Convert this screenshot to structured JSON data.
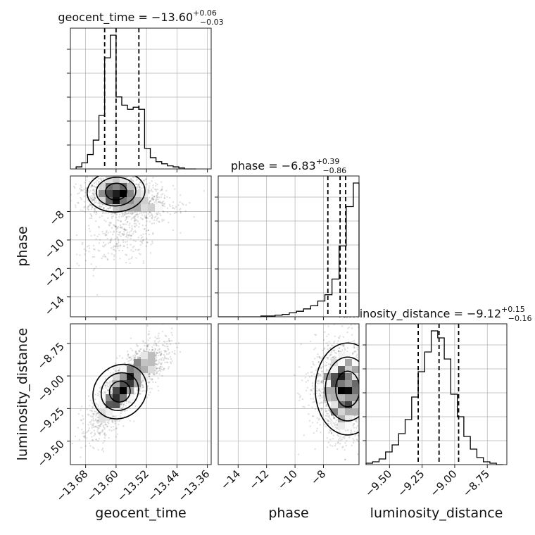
{
  "chart_data": {
    "type": "corner",
    "titles": {
      "geocent_time": {
        "prefix": "geocent_time = ",
        "value": "−13.60",
        "sup": "+0.06",
        "sub": "−0.03"
      },
      "phase": {
        "prefix": "phase = ",
        "value": "−6.83",
        "sup": "+0.39",
        "sub": "−0.86"
      },
      "luminosity_distance": {
        "prefix": "luminosity_distance = ",
        "value": "−9.12",
        "sup": "+0.15",
        "sub": "−0.16"
      }
    },
    "axis_labels": {
      "x0": "geocent_time",
      "x1": "phase",
      "x2": "luminosity_distance",
      "y1": "phase",
      "y2": "luminosity_distance"
    },
    "ranges": {
      "geocent_time": [
        -13.72,
        -13.35
      ],
      "phase": [
        -15.4,
        -5.5
      ],
      "luminosity_distance": [
        -9.68,
        -8.6
      ]
    },
    "ticks": {
      "geocent_time": [
        -13.68,
        -13.6,
        -13.52,
        -13.44,
        -13.36
      ],
      "geocent_time_labels": [
        "−13.68",
        "−13.60",
        "−13.52",
        "−13.44",
        "−13.36"
      ],
      "phase": [
        -14,
        -12,
        -10,
        -8
      ],
      "phase_labels": [
        "−14",
        "−12",
        "−10",
        "−8"
      ],
      "luminosity_distance": [
        -9.5,
        -9.25,
        -9.0,
        -8.75
      ],
      "luminosity_distance_labels": [
        "−9.50",
        "−9.25",
        "−9.00",
        "−8.75"
      ]
    },
    "histograms": {
      "geocent_time": {
        "edges": [
          -13.705,
          -13.69,
          -13.675,
          -13.66,
          -13.645,
          -13.63,
          -13.615,
          -13.6,
          -13.585,
          -13.57,
          -13.555,
          -13.54,
          -13.525,
          -13.51,
          -13.495,
          -13.48,
          -13.465,
          -13.45,
          -13.435,
          -13.42,
          -13.405,
          -13.39
        ],
        "counts": [
          2,
          6,
          14,
          28,
          52,
          108,
          130,
          70,
          62,
          58,
          60,
          58,
          20,
          11,
          7,
          5,
          3,
          2,
          1,
          0,
          0
        ],
        "quantiles": [
          -13.63,
          -13.6,
          -13.54
        ]
      },
      "phase": {
        "edges": [
          -15.4,
          -14.9,
          -14.4,
          -13.9,
          -13.4,
          -12.9,
          -12.4,
          -11.9,
          -11.4,
          -10.9,
          -10.4,
          -9.9,
          -9.4,
          -8.9,
          -8.4,
          -7.9,
          -7.4,
          -6.9,
          -6.4,
          -5.9,
          -5.5
        ],
        "counts": [
          0,
          0,
          0,
          0,
          0,
          0,
          1,
          1,
          2,
          3,
          5,
          7,
          10,
          14,
          20,
          28,
          48,
          90,
          140,
          170
        ],
        "quantiles": [
          -7.69,
          -6.83,
          -6.44
        ]
      },
      "luminosity_distance": {
        "edges": [
          -9.68,
          -9.63,
          -9.58,
          -9.53,
          -9.48,
          -9.43,
          -9.38,
          -9.33,
          -9.28,
          -9.23,
          -9.18,
          -9.13,
          -9.08,
          -9.03,
          -8.98,
          -8.93,
          -8.88,
          -8.83,
          -8.78,
          -8.73,
          -8.68,
          -8.63
        ],
        "counts": [
          1,
          2,
          4,
          9,
          14,
          22,
          32,
          48,
          66,
          80,
          95,
          90,
          75,
          50,
          34,
          20,
          11,
          5,
          2,
          1,
          0
        ],
        "quantiles": [
          -9.28,
          -9.12,
          -8.97
        ]
      }
    }
  }
}
